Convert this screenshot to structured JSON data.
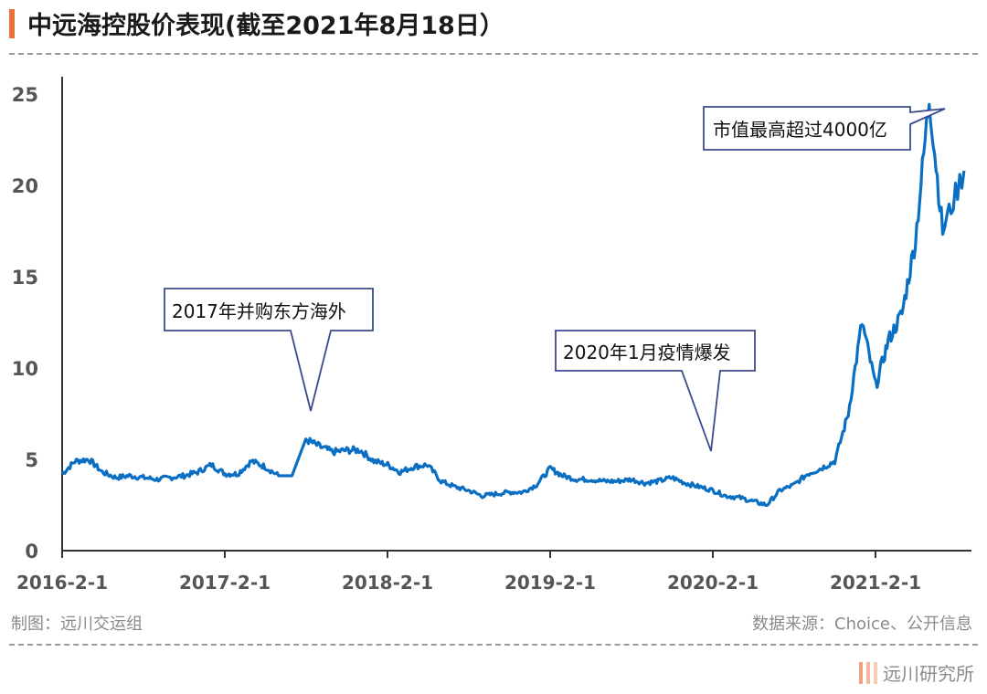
{
  "header": {
    "title": "中远海控股价表现(截至2021年8月18日）",
    "accent_color": "#e8743b"
  },
  "footer": {
    "credit": "制图：远川交运组",
    "source": "数据来源：Choice、公开信息",
    "brand": "远川研究所",
    "brand_colors": [
      "#f0a27c",
      "#f4b99a",
      "#f7cdb5"
    ]
  },
  "chart_data": {
    "type": "line",
    "title": "中远海控股价表现(截至2021年8月18日）",
    "xlabel": "",
    "ylabel": "",
    "ylim": [
      0,
      25
    ],
    "yticks": [
      0,
      5,
      10,
      15,
      20,
      25
    ],
    "x_tick_labels": [
      "2016-2-1",
      "2017-2-1",
      "2018-2-1",
      "2019-2-1",
      "2020-2-1",
      "2021-2-1"
    ],
    "grid": false,
    "legend": null,
    "line_color": "#0a6fc2",
    "series": [
      {
        "name": "中远海控股价",
        "x": [
          "2016-02-01",
          "2016-03-01",
          "2016-04-01",
          "2016-05-01",
          "2016-06-01",
          "2016-07-01",
          "2016-08-01",
          "2016-09-01",
          "2016-10-01",
          "2016-11-01",
          "2016-12-01",
          "2017-01-01",
          "2017-02-01",
          "2017-03-01",
          "2017-04-01",
          "2017-05-01",
          "2017-06-01",
          "2017-07-01",
          "2017-08-01",
          "2017-09-01",
          "2017-10-01",
          "2017-11-01",
          "2017-12-01",
          "2018-01-01",
          "2018-02-01",
          "2018-03-01",
          "2018-04-01",
          "2018-05-01",
          "2018-06-01",
          "2018-07-01",
          "2018-08-01",
          "2018-09-01",
          "2018-10-01",
          "2018-11-01",
          "2018-12-01",
          "2019-01-01",
          "2019-02-01",
          "2019-03-01",
          "2019-04-01",
          "2019-05-01",
          "2019-06-01",
          "2019-07-01",
          "2019-08-01",
          "2019-09-01",
          "2019-10-01",
          "2019-11-01",
          "2019-12-01",
          "2020-01-01",
          "2020-02-01",
          "2020-03-01",
          "2020-04-01",
          "2020-05-01",
          "2020-06-01",
          "2020-07-01",
          "2020-08-01",
          "2020-09-01",
          "2020-10-01",
          "2020-11-01",
          "2020-12-01",
          "2021-01-01",
          "2021-02-01",
          "2021-03-01",
          "2021-04-01",
          "2021-05-01",
          "2021-06-01",
          "2021-07-01",
          "2021-08-18"
        ],
        "values": [
          4.2,
          4.9,
          5.0,
          4.3,
          4.0,
          4.1,
          4.0,
          3.9,
          4.0,
          4.1,
          4.3,
          4.7,
          4.2,
          4.2,
          4.9,
          4.6,
          4.1,
          4.1,
          6.1,
          5.7,
          5.4,
          5.5,
          5.5,
          4.9,
          4.7,
          4.3,
          4.6,
          4.7,
          3.8,
          3.5,
          3.3,
          3.0,
          3.1,
          3.2,
          3.2,
          3.6,
          4.5,
          4.1,
          3.9,
          3.9,
          3.8,
          3.8,
          3.9,
          3.7,
          3.8,
          4.0,
          3.7,
          3.5,
          3.3,
          3.0,
          2.9,
          2.7,
          2.5,
          3.3,
          3.6,
          4.2,
          4.5,
          4.9,
          7.5,
          12.5,
          9.0,
          11.5,
          13.0,
          17.0,
          24.8,
          17.5,
          20.8
        ]
      }
    ],
    "annotations": [
      {
        "text": "2017年并购东方海外",
        "point_x": "2017-08",
        "point_y": 7.5
      },
      {
        "text": "2020年1月疫情爆发",
        "point_x": "2020-01",
        "point_y": 5.4
      },
      {
        "text": "市值最高超过4000亿",
        "point_x": "2021-06",
        "point_y": 24.5
      }
    ]
  }
}
